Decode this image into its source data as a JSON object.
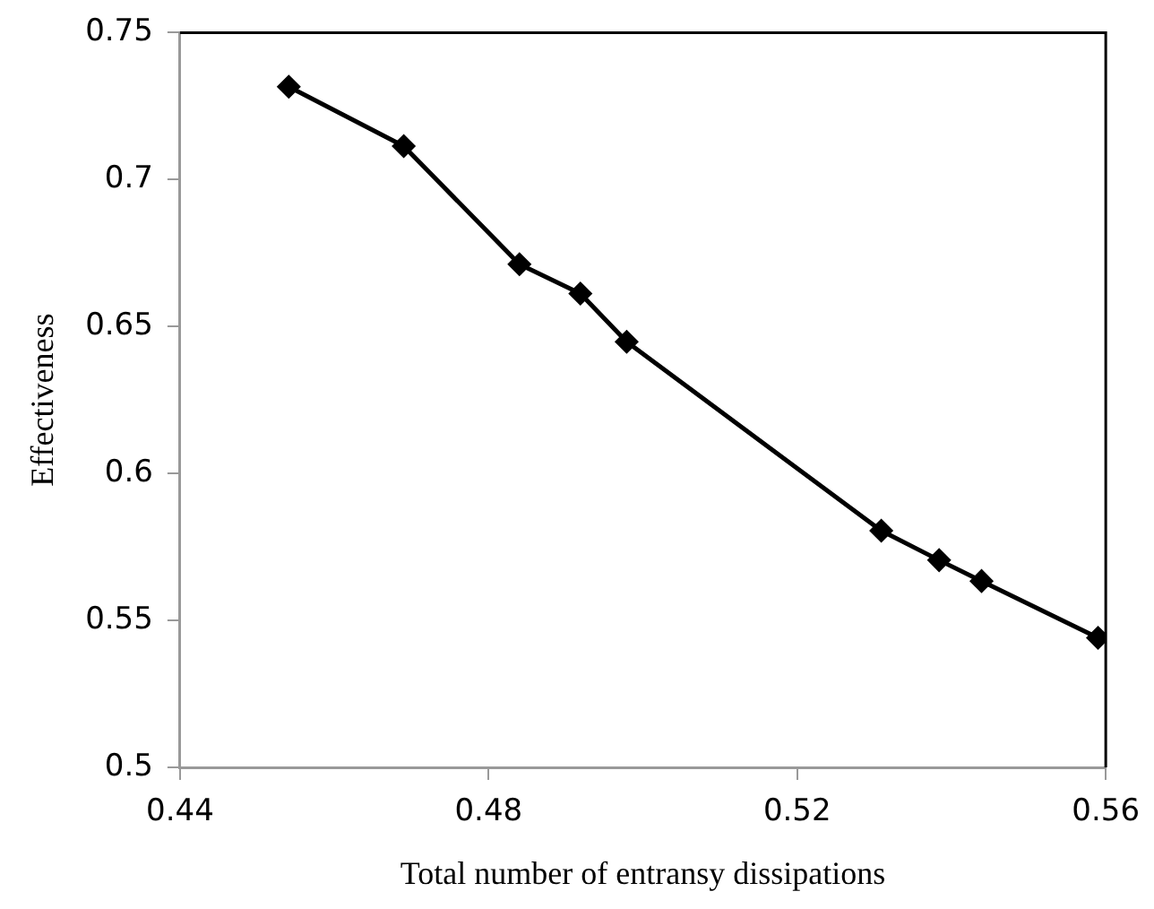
{
  "chart_data": {
    "type": "line",
    "xlabel": "Total number of entransy dissipations",
    "ylabel": "Effectiveness",
    "x": [
      0.4541,
      0.469,
      0.484,
      0.4919,
      0.4979,
      0.5309,
      0.5384,
      0.5439,
      0.559
    ],
    "series": [
      {
        "color": "#000000",
        "values": [
          0.7316,
          0.7114,
          0.6712,
          0.6612,
          0.6448,
          0.5805,
          0.5705,
          0.5634,
          0.5441
        ]
      }
    ],
    "xlim": [
      0.44,
      0.56
    ],
    "xticks": [
      {
        "value": 0.44,
        "label": "0.44"
      },
      {
        "value": 0.48,
        "label": "0.48"
      },
      {
        "value": 0.52,
        "label": "0.52"
      },
      {
        "value": 0.56,
        "label": "0.56"
      }
    ],
    "ylim": [
      0.5,
      0.75
    ],
    "yticks": [
      {
        "value": 0.5,
        "label": "0.5"
      },
      {
        "value": 0.55,
        "label": "0.55"
      },
      {
        "value": 0.6,
        "label": "0.6"
      },
      {
        "value": 0.65,
        "label": "0.65"
      },
      {
        "value": 0.7,
        "label": "0.7"
      },
      {
        "value": 0.75,
        "label": "0.75"
      }
    ],
    "grid": false,
    "legend": false,
    "marker": "diamond",
    "line_style": "solid"
  }
}
